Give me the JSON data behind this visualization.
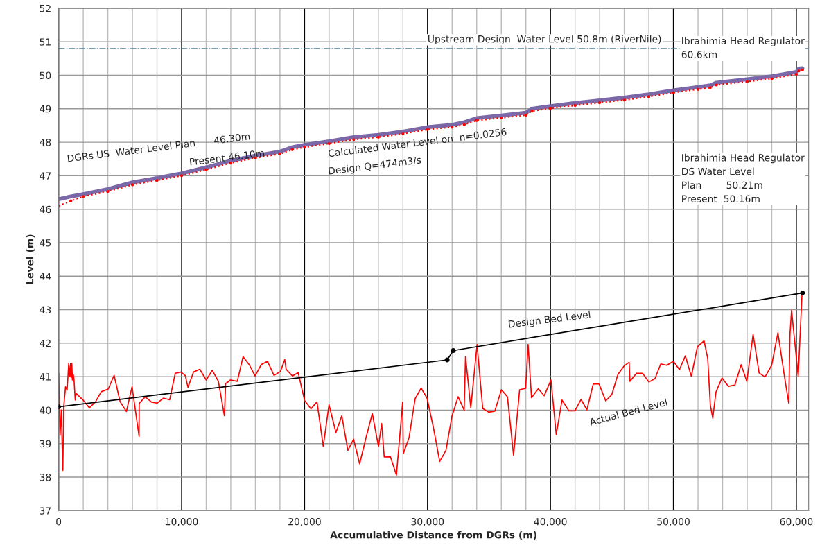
{
  "chart_data": {
    "type": "line",
    "xlabel": "Accumulative Distance from DGRs (m)",
    "ylabel": "Level (m)",
    "xlim": [
      0,
      61000
    ],
    "ylim": [
      37,
      52
    ],
    "xticks": [
      {
        "value": 0,
        "label": "0"
      },
      {
        "value": 10000,
        "label": "10,000"
      },
      {
        "value": 20000,
        "label": "20,000"
      },
      {
        "value": 30000,
        "label": "30,000"
      },
      {
        "value": 40000,
        "label": "40,000"
      },
      {
        "value": 50000,
        "label": "50,000"
      },
      {
        "value": 60000,
        "label": "60,000"
      }
    ],
    "yticks": [
      37,
      38,
      39,
      40,
      41,
      42,
      43,
      44,
      45,
      46,
      47,
      48,
      49,
      50,
      51,
      52
    ],
    "grid": true,
    "legend": false,
    "series": [
      {
        "color": "#7b68a8",
        "line_style": "solid",
        "marker": "none",
        "x": [
          0,
          1000,
          2000,
          4000,
          6000,
          8000,
          10000,
          12000,
          14000,
          16000,
          18000,
          19000,
          20000,
          22000,
          24000,
          26000,
          28000,
          30000,
          32000,
          33000,
          34000,
          36000,
          38000,
          38500,
          40000,
          42000,
          44000,
          46000,
          48000,
          50000,
          52000,
          53000,
          53500,
          56000,
          58000,
          60000,
          60200,
          60500
        ],
        "values": [
          46.3,
          46.38,
          46.45,
          46.6,
          46.8,
          46.93,
          47.07,
          47.25,
          47.45,
          47.6,
          47.72,
          47.85,
          47.92,
          48.03,
          48.15,
          48.22,
          48.32,
          48.45,
          48.52,
          48.6,
          48.72,
          48.8,
          48.88,
          49.0,
          49.08,
          49.17,
          49.25,
          49.33,
          49.43,
          49.55,
          49.65,
          49.7,
          49.78,
          49.88,
          49.97,
          50.1,
          50.2,
          50.21
        ]
      },
      {
        "color": "#ff0000",
        "line_style": "dotted",
        "marker": "circle",
        "x": [
          0,
          1000,
          2000,
          4000,
          6000,
          8000,
          10000,
          12000,
          14000,
          16000,
          18000,
          19000,
          20000,
          22000,
          24000,
          26000,
          28000,
          30000,
          32000,
          33000,
          34000,
          36000,
          38000,
          38500,
          40000,
          42000,
          44000,
          46000,
          48000,
          50000,
          52000,
          53000,
          53500,
          56000,
          58000,
          60000,
          60200,
          60500
        ],
        "values": [
          46.1,
          46.25,
          46.38,
          46.53,
          46.73,
          46.86,
          47.0,
          47.18,
          47.38,
          47.53,
          47.65,
          47.78,
          47.85,
          47.96,
          48.08,
          48.15,
          48.25,
          48.38,
          48.45,
          48.53,
          48.65,
          48.73,
          48.81,
          48.93,
          49.01,
          49.1,
          49.18,
          49.26,
          49.36,
          49.48,
          49.58,
          49.63,
          49.71,
          49.81,
          49.9,
          50.03,
          50.13,
          50.16
        ]
      },
      {
        "color": "#000000",
        "line_style": "solid",
        "marker": "circle",
        "x": [
          0,
          31600,
          32100,
          60500
        ],
        "values": [
          40.1,
          41.5,
          41.78,
          43.5
        ]
      },
      {
        "color": "#ff0000",
        "line_style": "solid",
        "marker": "none",
        "x": [
          0,
          110,
          225,
          300,
          340,
          410,
          560,
          690,
          820,
          900,
          970,
          1010,
          1070,
          1120,
          1200,
          1250,
          1350,
          1420,
          1990,
          2490,
          3000,
          3460,
          4030,
          4510,
          5000,
          5510,
          5970,
          6540,
          6550,
          7040,
          7550,
          8010,
          8520,
          9030,
          9480,
          9940,
          10300,
          10520,
          10970,
          11480,
          12000,
          12490,
          12990,
          13480,
          13580,
          13970,
          14530,
          15000,
          15510,
          15970,
          16480,
          16980,
          17510,
          18030,
          18390,
          18500,
          19010,
          19480,
          20000,
          20520,
          21010,
          21520,
          21990,
          22550,
          23030,
          23520,
          23990,
          24480,
          24980,
          25510,
          26010,
          26270,
          26480,
          26980,
          27470,
          27980,
          28030,
          28500,
          28990,
          29480,
          29960,
          30490,
          30990,
          31500,
          31990,
          32490,
          32980,
          33090,
          33520,
          34030,
          34490,
          34980,
          35470,
          36010,
          36500,
          37000,
          37490,
          37980,
          38180,
          38460,
          39010,
          39490,
          40040,
          40470,
          40940,
          41500,
          41990,
          42490,
          42960,
          43480,
          43950,
          44490,
          44980,
          45490,
          45990,
          46400,
          46460,
          47000,
          47490,
          48000,
          48500,
          48970,
          49460,
          50000,
          50490,
          50970,
          51460,
          51950,
          52490,
          52790,
          53000,
          53200,
          53460,
          53950,
          54480,
          55000,
          55510,
          55970,
          56480,
          56970,
          57450,
          57990,
          58500,
          59030,
          59380,
          59480,
          59610,
          60150,
          60470
        ],
        "values": [
          41.1,
          39.25,
          40.0,
          38.6,
          38.2,
          40.1,
          40.7,
          40.6,
          41.4,
          41.0,
          41.4,
          40.97,
          41.4,
          40.9,
          41.05,
          40.9,
          40.3,
          40.5,
          40.3,
          40.07,
          40.25,
          40.55,
          40.63,
          41.04,
          40.25,
          39.96,
          40.7,
          39.22,
          40.2,
          40.4,
          40.24,
          40.21,
          40.36,
          40.31,
          41.1,
          41.14,
          41.03,
          40.68,
          41.14,
          41.22,
          40.9,
          41.19,
          40.86,
          39.83,
          40.79,
          40.9,
          40.86,
          41.6,
          41.35,
          41.02,
          41.36,
          41.46,
          41.04,
          41.15,
          41.51,
          41.22,
          41.02,
          41.12,
          40.29,
          40.04,
          40.25,
          38.92,
          40.16,
          39.33,
          39.83,
          38.8,
          39.13,
          38.4,
          39.15,
          39.9,
          38.92,
          39.6,
          38.6,
          38.61,
          38.06,
          40.24,
          38.7,
          39.18,
          40.34,
          40.66,
          40.36,
          39.46,
          38.47,
          38.8,
          39.82,
          40.4,
          40.0,
          41.6,
          40.07,
          41.96,
          40.05,
          39.94,
          39.97,
          40.61,
          40.4,
          38.65,
          40.61,
          40.65,
          41.96,
          40.37,
          40.64,
          40.43,
          40.9,
          39.27,
          40.3,
          39.98,
          39.98,
          40.32,
          40.01,
          40.78,
          40.78,
          40.28,
          40.46,
          41.07,
          41.32,
          41.43,
          40.86,
          41.1,
          41.1,
          40.84,
          40.94,
          41.38,
          41.34,
          41.46,
          41.21,
          41.62,
          41.01,
          41.89,
          42.07,
          41.55,
          40.16,
          39.76,
          40.54,
          40.96,
          40.71,
          40.75,
          41.36,
          40.86,
          42.26,
          41.11,
          40.99,
          41.34,
          42.31,
          41.01,
          40.21,
          42.26,
          42.98,
          41.01,
          43.55
        ]
      }
    ],
    "ref_lines": [
      {
        "axis": "y",
        "value": 50.8,
        "label": "Upstream Design  Water Level 50.8m (RiverNile)",
        "color": "#4f7f8f",
        "line_style": "dashdot"
      }
    ],
    "annotations": [
      "DGRs US  Water Level Plan      46.30m",
      "Present 46.10m",
      "Calculated Water Level on  n=0.0256",
      "Design Q=474m3/s",
      "Ibrahimia Head Regulator\n60.6km",
      "Ibrahimia Head Regulator\nDS Water Level\nPlan        50.21m\nPresent  50.16m",
      "Design Bed Level",
      "Actual Bed Level"
    ]
  }
}
